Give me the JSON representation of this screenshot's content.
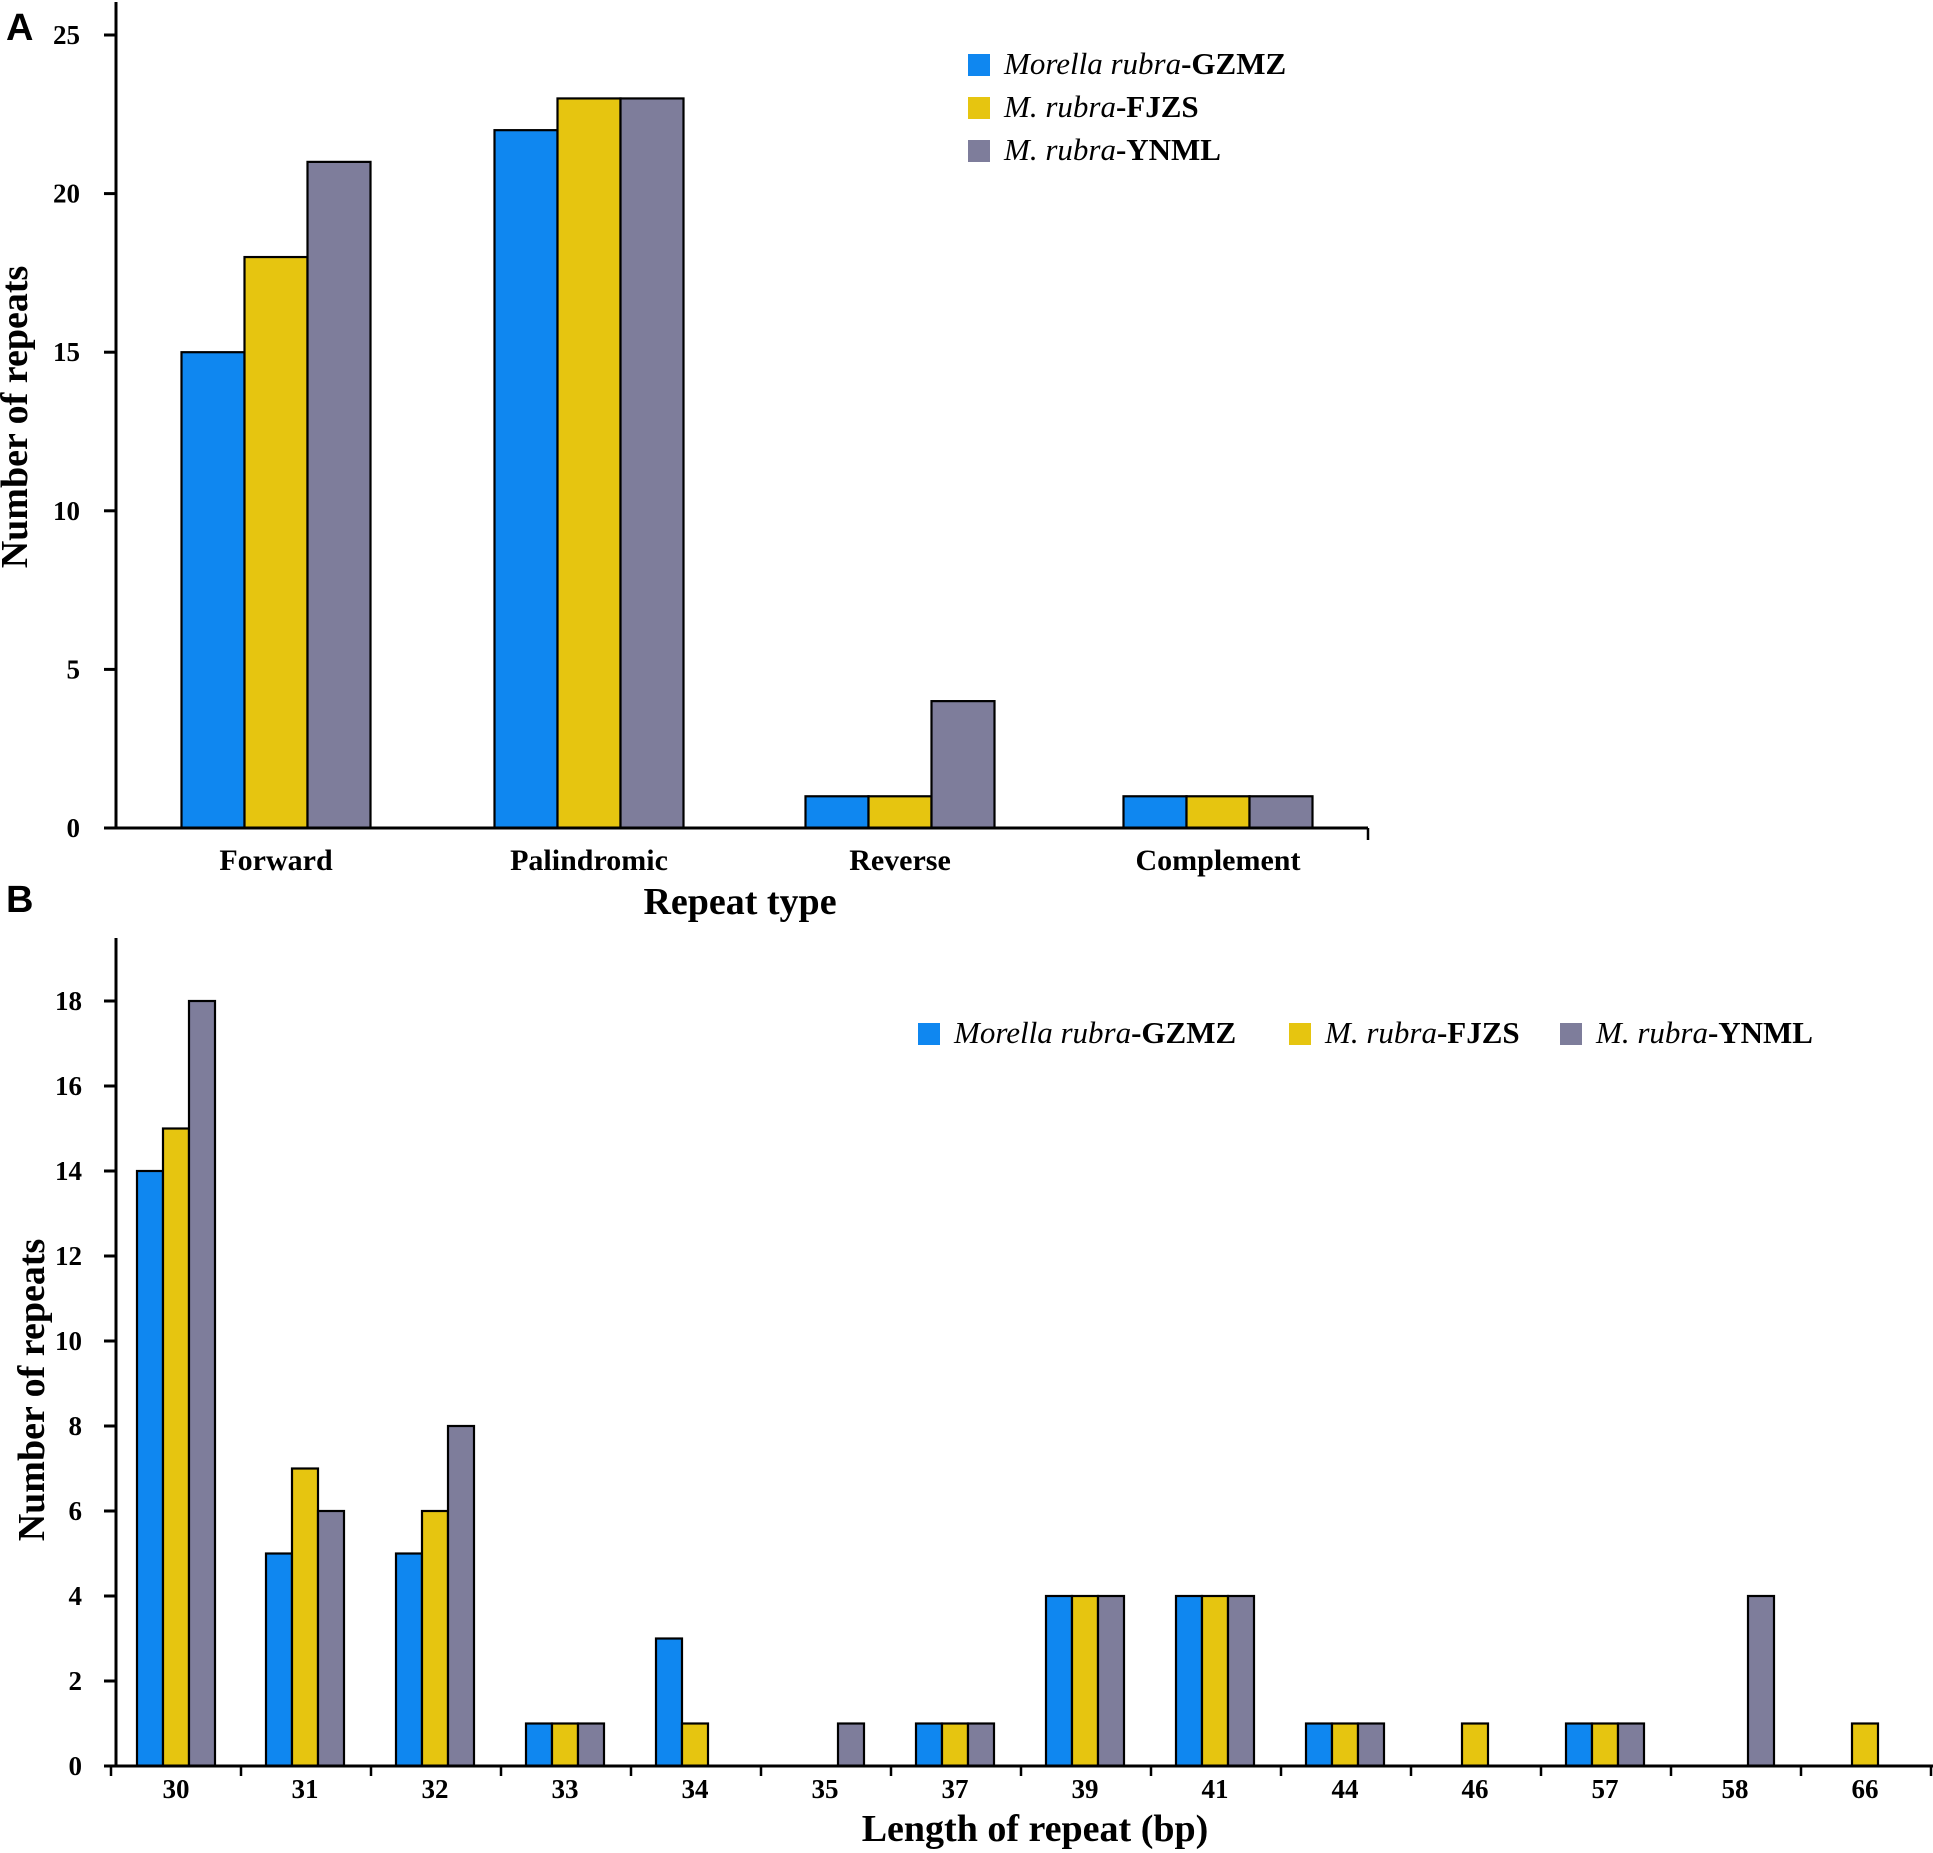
{
  "colors": {
    "gzmz": "#0f87f0",
    "fjzs": "#e6c510",
    "ynml": "#7e7d9b",
    "axis": "#000000"
  },
  "chart_data": [
    {
      "panel": "A",
      "type": "bar",
      "categories": [
        "Forward",
        "Palindromic",
        "Reverse",
        "Complement"
      ],
      "series": [
        {
          "name_italic": "Morella rubra",
          "name_bold": "-GZMZ",
          "values": [
            15,
            22,
            1,
            1
          ]
        },
        {
          "name_italic": "M. rubra",
          "name_bold": "-FJZS",
          "values": [
            18,
            23,
            1,
            1
          ]
        },
        {
          "name_italic": "M. rubra",
          "name_bold": "-YNML",
          "values": [
            21,
            23,
            4,
            1
          ]
        }
      ],
      "xlabel": "Repeat type",
      "ylabel": "Number of repeats",
      "ylim": [
        0,
        25
      ],
      "yticks": [
        0,
        5,
        10,
        15,
        20,
        25
      ],
      "legend_position": "top-right"
    },
    {
      "panel": "B",
      "type": "bar",
      "categories": [
        "30",
        "31",
        "32",
        "33",
        "34",
        "35",
        "37",
        "39",
        "41",
        "44",
        "46",
        "57",
        "58",
        "66"
      ],
      "series": [
        {
          "name_italic": "Morella rubra",
          "name_bold": "-GZMZ",
          "values": [
            14,
            5,
            5,
            1,
            3,
            0,
            1,
            4,
            4,
            1,
            0,
            1,
            0,
            0
          ]
        },
        {
          "name_italic": "M. rubra",
          "name_bold": "-FJZS",
          "values": [
            15,
            7,
            6,
            1,
            1,
            0,
            1,
            4,
            4,
            1,
            1,
            1,
            0,
            1
          ]
        },
        {
          "name_italic": "M. rubra",
          "name_bold": "-YNML",
          "values": [
            18,
            6,
            8,
            1,
            0,
            1,
            1,
            4,
            4,
            1,
            0,
            1,
            4,
            0
          ]
        }
      ],
      "xlabel": "Length of repeat (bp)",
      "ylabel": "Number of repeats",
      "ylim": [
        0,
        19
      ],
      "yticks": [
        0,
        2,
        4,
        6,
        8,
        10,
        12,
        14,
        16,
        18
      ],
      "legend_position": "top-right"
    }
  ]
}
